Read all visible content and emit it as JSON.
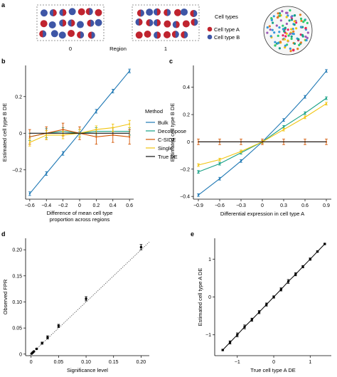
{
  "panel_a": {
    "letter": "a",
    "region_label": "Region",
    "region_names": [
      "0",
      "1"
    ],
    "legend_title": "Cell types",
    "legend_items": [
      {
        "name": "Cell type A",
        "color": "#c0242f"
      },
      {
        "name": "Cell type B",
        "color": "#3e56a6"
      }
    ]
  },
  "colors": {
    "bulk": "#1f78b4",
    "decompose": "#16a085",
    "cside": "#d35400",
    "single": "#f1c40f",
    "truede": "#111111"
  },
  "chart_data": [
    {
      "id": "b",
      "letter": "b",
      "type": "line",
      "xlabel": "Difference of mean cell type proportion across regions",
      "xlabel_lines": [
        "Difference of mean cell type",
        "proportion across regions"
      ],
      "ylabel": "Estimated cell type B DE",
      "xlim": [
        -0.65,
        0.65
      ],
      "ylim": [
        -0.36,
        0.37
      ],
      "xticks": [
        -0.6,
        -0.4,
        -0.2,
        0,
        0.2,
        0.4,
        0.6
      ],
      "xtick_labels": [
        "−0.6",
        "−0.4",
        "−0.2",
        "0",
        "0.2",
        "0.4",
        "0.6"
      ],
      "yticks": [
        -0.2,
        0,
        0.2
      ],
      "ytick_labels": [
        "−0.2",
        "0",
        "0.2"
      ],
      "legend_title": "Method",
      "legend_placement": "right",
      "x": [
        -0.6,
        -0.4,
        -0.2,
        0,
        0.2,
        0.4,
        0.6
      ],
      "series": [
        {
          "name": "Bulk",
          "key": "bulk",
          "values": [
            -0.33,
            -0.22,
            -0.11,
            0.0,
            0.12,
            0.23,
            0.34
          ],
          "err": [
            0.01,
            0.01,
            0.01,
            0.008,
            0.01,
            0.01,
            0.01
          ]
        },
        {
          "name": "Decompose",
          "key": "decompose",
          "values": [
            -0.02,
            0.0,
            0.01,
            0.0,
            0.01,
            0.01,
            0.01
          ],
          "err": [
            0.02,
            0.025,
            0.02,
            0.02,
            0.02,
            0.02,
            0.02
          ]
        },
        {
          "name": "C-SIDE",
          "key": "cside",
          "values": [
            -0.02,
            0.0,
            0.02,
            0.0,
            -0.02,
            -0.01,
            -0.02
          ],
          "err": [
            0.04,
            0.035,
            0.035,
            0.035,
            0.04,
            0.04,
            0.04
          ]
        },
        {
          "name": "Single",
          "key": "single",
          "values": [
            -0.05,
            -0.01,
            -0.01,
            0.0,
            0.02,
            0.03,
            0.05
          ],
          "err": [
            0.02,
            0.025,
            0.02,
            0.02,
            0.02,
            0.02,
            0.02
          ]
        },
        {
          "name": "True DE",
          "key": "truede",
          "values": [
            0,
            0,
            0,
            0,
            0,
            0,
            0
          ],
          "err": [
            0,
            0,
            0,
            0,
            0,
            0,
            0
          ]
        }
      ]
    },
    {
      "id": "c",
      "letter": "c",
      "type": "line",
      "xlabel": "Differential expression in cell type A",
      "ylabel": "Estimated cell type B DE",
      "xlim": [
        -0.97,
        0.97
      ],
      "ylim": [
        -0.42,
        0.56
      ],
      "xticks": [
        -0.9,
        -0.6,
        -0.3,
        0,
        0.3,
        0.6,
        0.9
      ],
      "xtick_labels": [
        "−0.9",
        "−0.6",
        "−0.3",
        "0",
        "0.3",
        "0.6",
        "0.9"
      ],
      "yticks": [
        -0.4,
        -0.2,
        0,
        0.2,
        0.4
      ],
      "ytick_labels": [
        "−0.4",
        "−0.2",
        "0",
        "0.2",
        "0.4"
      ],
      "x": [
        -0.9,
        -0.6,
        -0.3,
        0,
        0.3,
        0.6,
        0.9
      ],
      "series": [
        {
          "name": "Bulk",
          "key": "bulk",
          "values": [
            -0.39,
            -0.27,
            -0.14,
            0.0,
            0.16,
            0.33,
            0.52
          ],
          "err": [
            0.01,
            0.01,
            0.01,
            0.01,
            0.01,
            0.01,
            0.01
          ]
        },
        {
          "name": "Decompose",
          "key": "decompose",
          "values": [
            -0.22,
            -0.16,
            -0.08,
            0.0,
            0.11,
            0.21,
            0.32
          ],
          "err": [
            0.01,
            0.01,
            0.01,
            0.01,
            0.01,
            0.01,
            0.01
          ]
        },
        {
          "name": "Single",
          "key": "single",
          "values": [
            -0.17,
            -0.13,
            -0.07,
            0.0,
            0.09,
            0.18,
            0.28
          ],
          "err": [
            0.01,
            0.01,
            0.01,
            0.01,
            0.01,
            0.01,
            0.01
          ]
        },
        {
          "name": "C-SIDE",
          "key": "cside",
          "values": [
            0.0,
            0.0,
            0.0,
            0.0,
            0.0,
            0.0,
            0.0
          ],
          "err": [
            0.02,
            0.02,
            0.02,
            0.02,
            0.02,
            0.02,
            0.02
          ]
        },
        {
          "name": "True DE",
          "key": "truede",
          "values": [
            0,
            0,
            0,
            0,
            0,
            0,
            0
          ],
          "err": [
            0,
            0,
            0,
            0,
            0,
            0,
            0
          ]
        }
      ]
    },
    {
      "id": "d",
      "letter": "d",
      "type": "scatter",
      "xlabel": "Significance level",
      "ylabel": "Observed FPR",
      "xlim": [
        -0.01,
        0.215
      ],
      "ylim": [
        -0.003,
        0.222
      ],
      "xticks": [
        0,
        0.05,
        0.1,
        0.15,
        0.2
      ],
      "xtick_labels": [
        "0",
        "0.05",
        "0.10",
        "0.15",
        "0.20"
      ],
      "yticks": [
        0,
        0.05,
        0.1,
        0.15,
        0.2
      ],
      "ytick_labels": [
        "0",
        "0.05",
        "0.10",
        "0.15",
        "0.20"
      ],
      "diagonal": true,
      "x": [
        0.001,
        0.003,
        0.005,
        0.01,
        0.02,
        0.03,
        0.05,
        0.1,
        0.2
      ],
      "values": [
        0.001,
        0.003,
        0.005,
        0.01,
        0.021,
        0.032,
        0.054,
        0.106,
        0.205
      ],
      "err": [
        0.0005,
        0.0008,
        0.001,
        0.001,
        0.002,
        0.003,
        0.003,
        0.004,
        0.005
      ]
    },
    {
      "id": "e",
      "letter": "e",
      "type": "line",
      "xlabel": "True cell type A DE",
      "ylabel": "Estimated cell type A DE",
      "xlim": [
        -1.62,
        1.58
      ],
      "ylim": [
        -1.55,
        1.55
      ],
      "xticks": [
        -1,
        0,
        1
      ],
      "xtick_labels": [
        "−1",
        "0",
        "1"
      ],
      "yticks": [
        -1,
        0,
        1
      ],
      "ytick_labels": [
        "−1",
        "0",
        "1"
      ],
      "x": [
        -1.4,
        -1.2,
        -1.0,
        -0.8,
        -0.6,
        -0.4,
        -0.2,
        0.0,
        0.2,
        0.4,
        0.6,
        0.8,
        1.0,
        1.2,
        1.4
      ],
      "values": [
        -1.4,
        -1.2,
        -1.0,
        -0.79,
        -0.6,
        -0.4,
        -0.2,
        0.0,
        0.2,
        0.41,
        0.6,
        0.8,
        1.0,
        1.2,
        1.4
      ],
      "err": [
        0.02,
        0.04,
        0.05,
        0.05,
        0.04,
        0.04,
        0.04,
        0.03,
        0.04,
        0.05,
        0.04,
        0.03,
        0.03,
        0.02,
        0.02
      ]
    }
  ]
}
